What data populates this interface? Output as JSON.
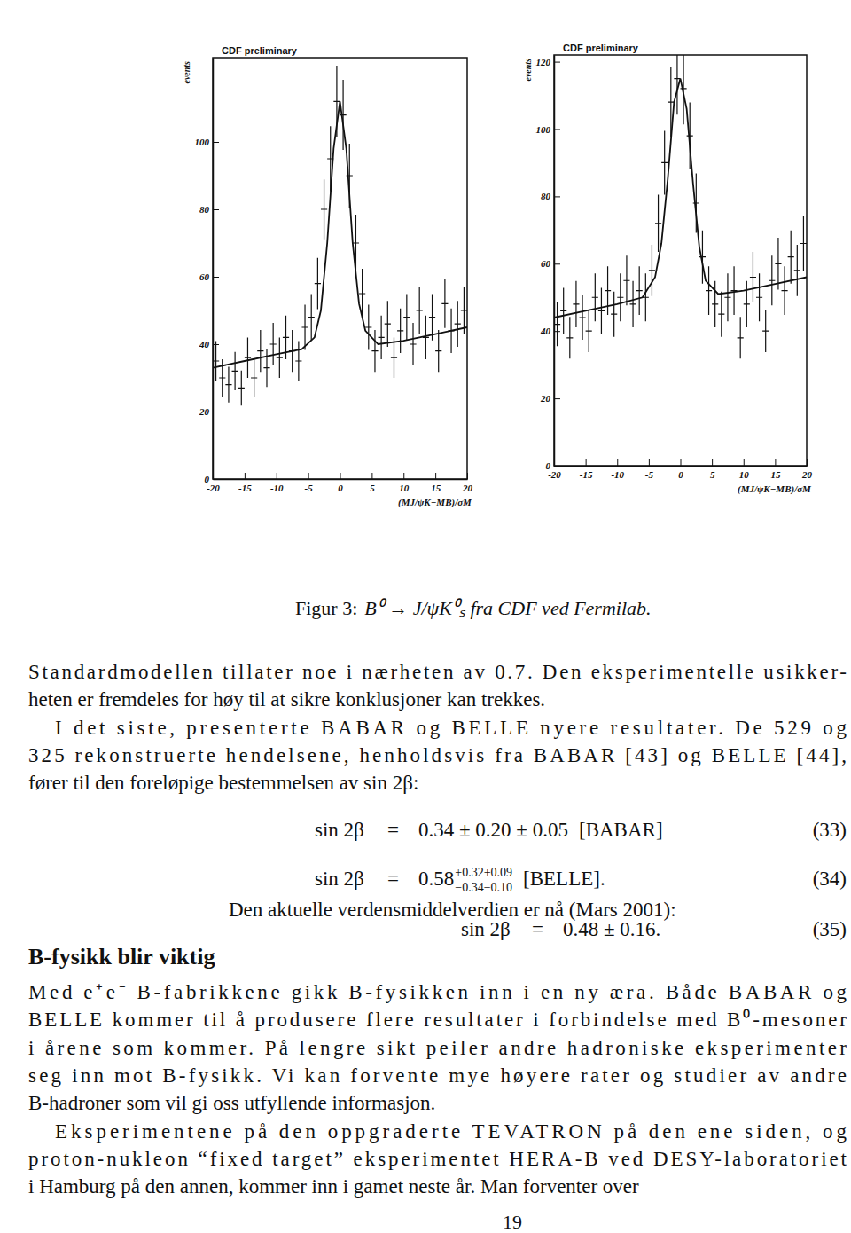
{
  "chart_data": [
    {
      "type": "scatter",
      "title": "CDF preliminary",
      "x_label": "(MJ/ψK−MB)/σM",
      "y_label": "events",
      "xlim": [
        -20,
        20
      ],
      "xticks": [
        -20,
        -15,
        -10,
        -5,
        0,
        5,
        10,
        15,
        20
      ],
      "ylim": [
        0,
        125
      ],
      "yticks": [
        0,
        20,
        40,
        60,
        80,
        100
      ],
      "color": "#111111",
      "series": [
        {
          "type": "scatter",
          "marker": "cross",
          "x": [
            -19.5,
            -18.5,
            -17.5,
            -16.5,
            -15.5,
            -14.5,
            -13.5,
            -12.5,
            -11.5,
            -10.5,
            -9.5,
            -8.5,
            -7.5,
            -6.5,
            -5.5,
            -4.5,
            -3.5,
            -2.5,
            -1.5,
            -0.5,
            0.5,
            1.5,
            2.5,
            3.5,
            4.5,
            5.5,
            6.5,
            7.5,
            8.5,
            9.5,
            10.5,
            11.5,
            12.5,
            13.5,
            14.5,
            15.5,
            16.5,
            17.5,
            18.5,
            19.5
          ],
          "values": [
            35,
            30,
            28,
            32,
            27,
            36,
            30,
            38,
            33,
            40,
            36,
            42,
            38,
            35,
            45,
            48,
            58,
            80,
            95,
            112,
            108,
            90,
            70,
            55,
            45,
            38,
            42,
            46,
            36,
            44,
            48,
            40,
            50,
            42,
            48,
            38,
            52,
            44,
            46,
            50
          ],
          "errors": [
            5.9,
            5.5,
            5.3,
            5.7,
            5.2,
            6,
            5.5,
            6.2,
            5.7,
            6.3,
            6,
            6.5,
            6.2,
            5.9,
            6.7,
            6.9,
            7.6,
            8.9,
            9.7,
            10.6,
            10.4,
            9.5,
            8.4,
            7.4,
            6.7,
            6.2,
            6.5,
            6.8,
            6,
            6.6,
            6.9,
            6.3,
            7.1,
            6.5,
            6.9,
            6.2,
            7.2,
            6.6,
            6.8,
            7.1
          ]
        },
        {
          "type": "line",
          "line_style": "solid",
          "x": [
            -20,
            -15,
            -10,
            -6,
            -4,
            -3,
            -2,
            -1,
            0,
            1,
            2,
            3,
            4,
            6,
            10,
            15,
            20
          ],
          "values": [
            33,
            35,
            37,
            38.5,
            42,
            50,
            70,
            98,
            112,
            98,
            70,
            52,
            44,
            40,
            41,
            43,
            45
          ]
        }
      ]
    },
    {
      "type": "scatter",
      "title": "CDF preliminary",
      "x_label": "(MJ/ψK−MB)/σM",
      "y_label": "events",
      "xlim": [
        -20,
        20
      ],
      "xticks": [
        -20,
        -15,
        -10,
        -5,
        0,
        5,
        10,
        15,
        20
      ],
      "ylim": [
        0,
        122
      ],
      "yticks": [
        0,
        20,
        40,
        60,
        80,
        100,
        120
      ],
      "color": "#111111",
      "series": [
        {
          "type": "scatter",
          "marker": "cross",
          "x": [
            -19.5,
            -18.5,
            -17.5,
            -16.5,
            -15.5,
            -14.5,
            -13.5,
            -12.5,
            -11.5,
            -10.5,
            -9.5,
            -8.5,
            -7.5,
            -6.5,
            -5.5,
            -4.5,
            -3.5,
            -2.5,
            -1.5,
            -0.5,
            0.5,
            1.5,
            2.5,
            3.5,
            4.5,
            5.5,
            6.5,
            7.5,
            8.5,
            9.5,
            10.5,
            11.5,
            12.5,
            13.5,
            14.5,
            15.5,
            16.5,
            17.5,
            18.5,
            19.5
          ],
          "values": [
            42,
            46,
            38,
            48,
            44,
            40,
            50,
            46,
            52,
            45,
            50,
            55,
            48,
            52,
            50,
            58,
            72,
            90,
            108,
            115,
            112,
            98,
            78,
            62,
            52,
            48,
            45,
            50,
            52,
            38,
            48,
            56,
            50,
            40,
            55,
            60,
            52,
            62,
            58,
            66
          ],
          "errors": [
            6.5,
            6.8,
            6.2,
            6.9,
            6.6,
            6.3,
            7.1,
            6.8,
            7.2,
            6.7,
            7.1,
            7.4,
            6.9,
            7.2,
            7.1,
            7.6,
            8.5,
            9.5,
            10.4,
            10.7,
            10.6,
            9.9,
            8.8,
            7.9,
            7.2,
            6.9,
            6.7,
            7.1,
            7.2,
            6.2,
            6.9,
            7.5,
            7.1,
            6.3,
            7.4,
            7.7,
            7.2,
            7.9,
            7.6,
            8.1
          ]
        },
        {
          "type": "line",
          "line_style": "solid",
          "x": [
            -20,
            -15,
            -10,
            -6,
            -4,
            -3,
            -2,
            -1,
            0,
            1,
            2,
            3,
            4,
            6,
            10,
            15,
            20
          ],
          "values": [
            44,
            46,
            48,
            50,
            56,
            66,
            85,
            108,
            115,
            106,
            84,
            65,
            55,
            51,
            52,
            54,
            56
          ]
        }
      ]
    }
  ],
  "document": {
    "caption": {
      "label": "Figur 3:",
      "text": "B⁰ → J/ψK⁰ₛ fra CDF ved Fermilab."
    },
    "text1": [
      [
        "Standardmodellen tillater noe i nærheten av 0.7. Den eksperimentelle usikker-",
        "heten er fremdeles for høy til at sikre konklusjoner kan trekkes."
      ],
      [
        "I det siste, presenterte BABAR og BELLE nyere resultater. De 529 og",
        "325 rekonstruerte hendelsene, henholdsvis fra BABAR [43] og BELLE [44],",
        "fører til den foreløpige bestemmelsen av sin 2β:"
      ]
    ],
    "equations": [
      {
        "lhs": "sin 2β",
        "rel": "=",
        "rhs": "0.34 ± 0.20 ± 0.05",
        "note": "[BABAR]",
        "number": "(33)"
      },
      {
        "lhs": "sin 2β",
        "rel": "=",
        "base": "0.58",
        "sup": "+0.32+0.09",
        "sub": "−0.34−0.10",
        "note": "[BELLE].",
        "number": "(34)"
      },
      {
        "lhs": "sin 2β",
        "rel": "=",
        "rhs": "0.48 ± 0.16.",
        "number": "(35)"
      }
    ],
    "interlude": "Den aktuelle verdensmiddelverdien er nå (Mars 2001):",
    "heading": "B-fysikk blir viktig",
    "text2": [
      [
        "Med e⁺e⁻ B-fabrikkene gikk B-fysikken inn i en ny æra. Både BABAR og",
        "BELLE kommer til å produsere flere resultater i forbindelse med B⁰-mesoner",
        "i årene som kommer. På lengre sikt peiler andre hadroniske eksperimenter",
        "seg inn mot B-fysikk. Vi kan forvente mye høyere rater og studier av andre",
        "B-hadroner som vil gi oss utfyllende informasjon."
      ],
      [
        "Eksperimentene på den oppgraderte TEVATRON på den ene siden, og",
        "proton-nukleon “fixed target” eksperimentet HERA-B ved DESY-laboratoriet",
        "i Hamburg på den annen, kommer inn i gamet neste år. Man forventer over"
      ]
    ],
    "page_number": "19"
  }
}
